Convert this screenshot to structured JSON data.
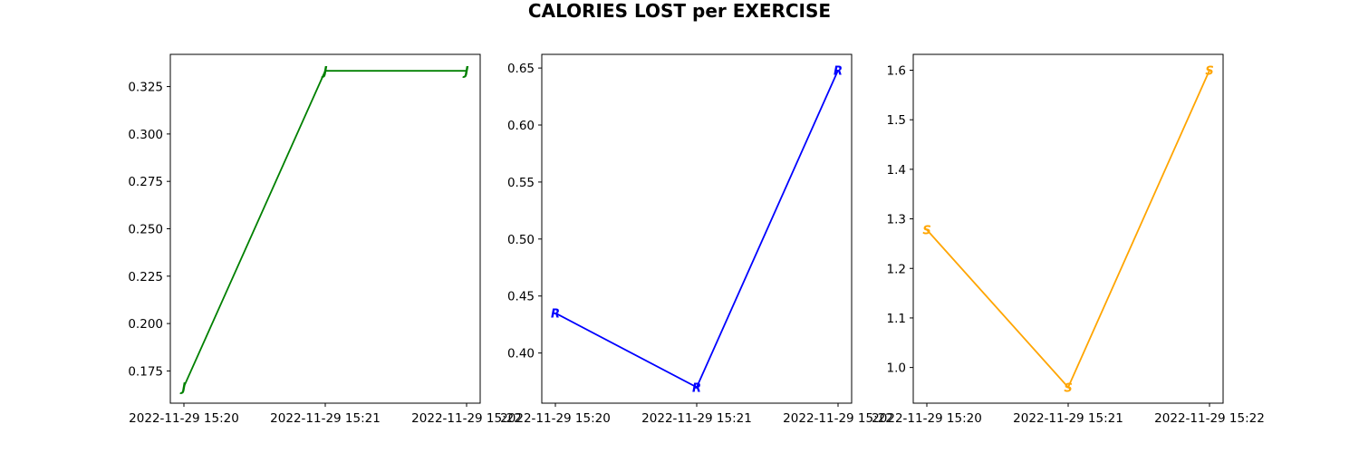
{
  "title": "CALORIES LOST per EXERCISE",
  "chart_data": [
    {
      "type": "line",
      "color": "#008000",
      "marker": "$J$",
      "x": [
        "2022-11-29 15:20",
        "2022-11-29 15:21",
        "2022-11-29 15:22"
      ],
      "values": [
        0.1667,
        0.3333,
        0.3333
      ],
      "ylim": [
        0.158,
        0.342
      ],
      "yticks": [
        0.175,
        0.2,
        0.225,
        0.25,
        0.275,
        0.3,
        0.325
      ],
      "ytick_labels": [
        "0.175",
        "0.200",
        "0.225",
        "0.250",
        "0.275",
        "0.300",
        "0.325"
      ],
      "xtick_labels": [
        "2022-11-29 15:20",
        "2022-11-29 15:21",
        "2022-11-29 15:22"
      ]
    },
    {
      "type": "line",
      "color": "#0000ff",
      "marker": "$R$",
      "x": [
        "2022-11-29 15:20",
        "2022-11-29 15:21",
        "2022-11-29 15:22"
      ],
      "values": [
        0.435,
        0.37,
        0.648
      ],
      "ylim": [
        0.356,
        0.662
      ],
      "yticks": [
        0.4,
        0.45,
        0.5,
        0.55,
        0.6,
        0.65
      ],
      "ytick_labels": [
        "0.40",
        "0.45",
        "0.50",
        "0.55",
        "0.60",
        "0.65"
      ],
      "xtick_labels": [
        "2022-11-29 15:20",
        "2022-11-29 15:21",
        "2022-11-29 15:22"
      ]
    },
    {
      "type": "line",
      "color": "#ffa500",
      "marker": "$S$",
      "x": [
        "2022-11-29 15:20",
        "2022-11-29 15:21",
        "2022-11-29 15:22"
      ],
      "values": [
        1.278,
        0.96,
        1.6
      ],
      "ylim": [
        0.928,
        1.632
      ],
      "yticks": [
        1.0,
        1.1,
        1.2,
        1.3,
        1.4,
        1.5,
        1.6
      ],
      "ytick_labels": [
        "1.0",
        "1.1",
        "1.2",
        "1.3",
        "1.4",
        "1.5",
        "1.6"
      ],
      "xtick_labels": [
        "2022-11-29 15:20",
        "2022-11-29 15:21",
        "2022-11-29 15:22"
      ]
    }
  ]
}
